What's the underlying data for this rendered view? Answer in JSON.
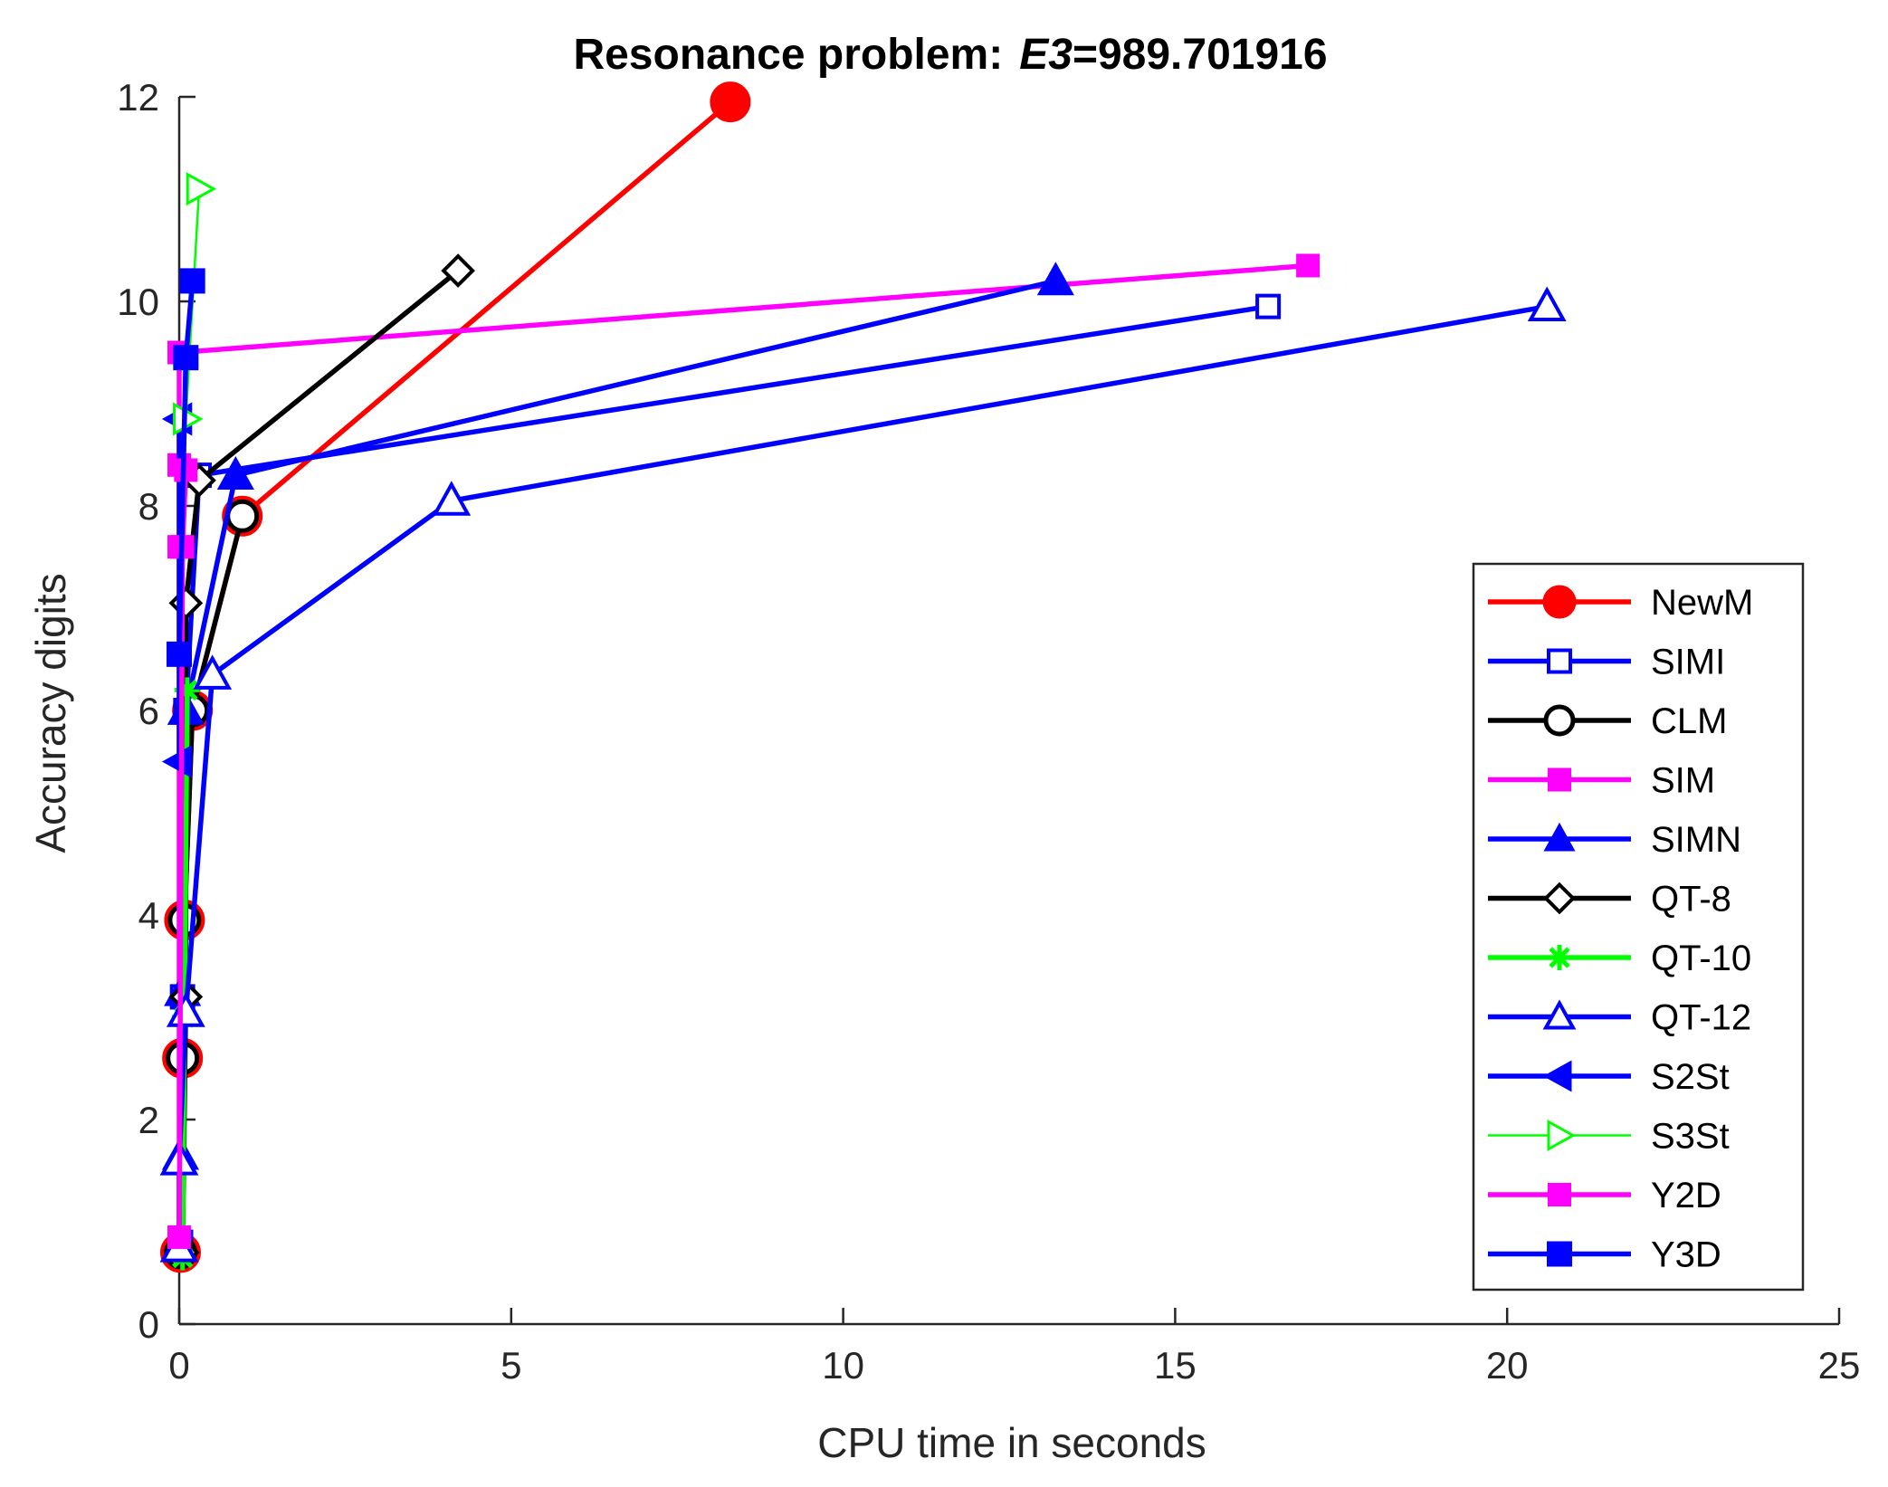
{
  "chart_data": {
    "type": "line",
    "title_prefix": "Resonance problem:",
    "title_var": "E3",
    "title_value": "=989.701916",
    "xlabel": "CPU time in seconds",
    "ylabel": "Accuracy digits",
    "xlim": [
      0,
      25
    ],
    "ylim": [
      0,
      12
    ],
    "xticks": [
      0,
      5,
      10,
      15,
      20,
      25
    ],
    "yticks": [
      0,
      2,
      4,
      6,
      8,
      10,
      12
    ],
    "legend_position": "bottom-right",
    "series": [
      {
        "name": "NewM",
        "color": "#ff0000",
        "marker": "circle",
        "filled": true,
        "marker_size": 20,
        "points": [
          [
            0.02,
            0.7
          ],
          [
            0.05,
            2.6
          ],
          [
            0.08,
            3.95
          ],
          [
            0.2,
            6.0
          ],
          [
            0.95,
            7.9
          ],
          [
            8.3,
            11.95
          ]
        ]
      },
      {
        "name": "SIMI",
        "color": "#0000ff",
        "marker": "square",
        "filled": false,
        "marker_size": 12,
        "points": [
          [
            0.02,
            0.8
          ],
          [
            0.05,
            3.2
          ],
          [
            0.1,
            6.0
          ],
          [
            0.3,
            8.3
          ],
          [
            16.4,
            9.95
          ]
        ]
      },
      {
        "name": "CLM",
        "color": "#000000",
        "marker": "circle",
        "filled": false,
        "marker_size": 16,
        "points": [
          [
            0.02,
            0.7
          ],
          [
            0.05,
            2.6
          ],
          [
            0.08,
            3.95
          ],
          [
            0.2,
            6.0
          ],
          [
            0.95,
            7.9
          ]
        ]
      },
      {
        "name": "SIM",
        "color": "#ff00ff",
        "marker": "square",
        "filled": true,
        "marker_size": 12,
        "points": [
          [
            0.0,
            0.85
          ],
          [
            0.0,
            7.6
          ],
          [
            0.0,
            8.4
          ],
          [
            0.0,
            9.5
          ],
          [
            17.0,
            10.35
          ]
        ]
      },
      {
        "name": "SIMN",
        "color": "#0000ff",
        "marker": "triangle-up",
        "filled": true,
        "marker_size": 18,
        "points": [
          [
            0.02,
            1.65
          ],
          [
            0.05,
            3.25
          ],
          [
            0.1,
            6.0
          ],
          [
            0.85,
            8.3
          ],
          [
            13.2,
            10.2
          ]
        ]
      },
      {
        "name": "QT-8",
        "color": "#000000",
        "marker": "diamond",
        "filled": false,
        "marker_size": 16,
        "points": [
          [
            0.05,
            0.7
          ],
          [
            0.1,
            3.2
          ],
          [
            0.1,
            7.05
          ],
          [
            0.3,
            8.25
          ],
          [
            4.2,
            10.3
          ]
        ]
      },
      {
        "name": "QT-10",
        "color": "#00ff00",
        "marker": "asterisk",
        "filled": true,
        "marker_size": 14,
        "points": [
          [
            0.05,
            0.65
          ],
          [
            0.08,
            3.0
          ],
          [
            0.12,
            6.2
          ]
        ]
      },
      {
        "name": "QT-12",
        "color": "#0000ff",
        "marker": "triangle-up",
        "filled": false,
        "marker_size": 18,
        "points": [
          [
            0.0,
            0.75
          ],
          [
            0.0,
            1.6
          ],
          [
            0.1,
            3.05
          ],
          [
            0.5,
            6.35
          ],
          [
            4.1,
            8.05
          ],
          [
            20.6,
            9.95
          ]
        ]
      },
      {
        "name": "S2St",
        "color": "#0000ff",
        "marker": "triangle-left",
        "filled": true,
        "marker_size": 16,
        "points": [
          [
            0.0,
            5.5
          ],
          [
            0.0,
            8.85
          ]
        ]
      },
      {
        "name": "S3St",
        "color": "#00ff00",
        "marker": "triangle-right",
        "filled": false,
        "marker_size": 16,
        "line_width": 2.5,
        "points": [
          [
            0.1,
            8.85
          ],
          [
            0.3,
            11.1
          ]
        ]
      },
      {
        "name": "Y2D",
        "color": "#ff00ff",
        "marker": "square",
        "filled": true,
        "marker_size": 12,
        "points": [
          [
            0.0,
            0.85
          ],
          [
            0.05,
            7.6
          ],
          [
            0.1,
            8.35
          ]
        ]
      },
      {
        "name": "Y3D",
        "color": "#0000ff",
        "marker": "square",
        "filled": true,
        "marker_size": 13,
        "points": [
          [
            0.0,
            6.55
          ],
          [
            0.1,
            9.45
          ],
          [
            0.2,
            10.2
          ]
        ]
      }
    ]
  }
}
